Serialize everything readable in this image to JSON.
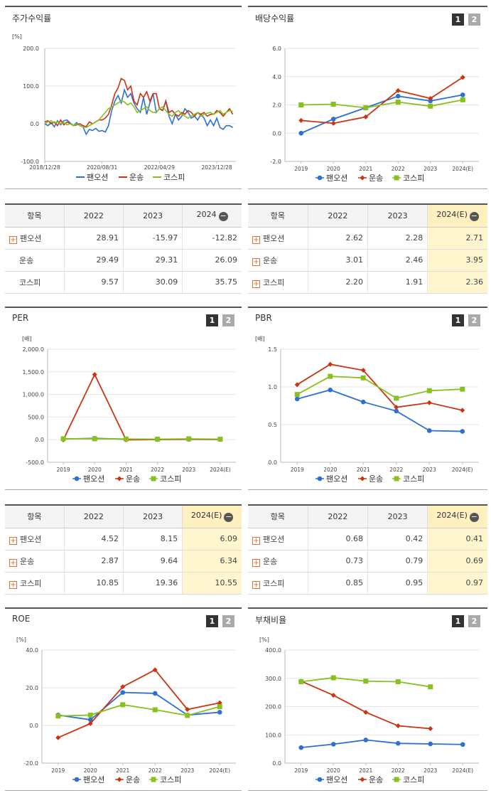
{
  "colors": {
    "pan": "#2e6fd6",
    "trans": "#cc3311",
    "kospi": "#88c020"
  },
  "legend": {
    "pan": "팬오션",
    "trans": "운송",
    "kospi": "코스피"
  },
  "pager": {
    "one": "1",
    "two": "2"
  },
  "charts": {
    "ret": {
      "title": "주가수익률",
      "unit": "[%]",
      "chart_data": {
        "type": "line",
        "ylim": [
          -100,
          200
        ],
        "yticks": [
          "200.0",
          "100.0",
          "0.0",
          "-100.0"
        ],
        "xticks": [
          "2018/12/28",
          "2020/08/31",
          "2022/04/29",
          "2023/12/28"
        ],
        "x_range": [
          0,
          60
        ],
        "x_tick_pos": [
          0,
          18,
          36,
          54
        ],
        "series": [
          {
            "name": "팬오션",
            "key": "pan",
            "values": [
              0,
              -5,
              3,
              -8,
              8,
              -3,
              8,
              10,
              2,
              -5,
              3,
              -5,
              -8,
              -28,
              -15,
              -18,
              -12,
              -20,
              -18,
              -22,
              -5,
              35,
              60,
              75,
              55,
              90,
              70,
              80,
              55,
              40,
              30,
              70,
              25,
              55,
              80,
              30,
              40,
              35,
              60,
              20,
              0,
              25,
              10,
              20,
              40,
              30,
              15,
              20,
              10,
              25,
              15,
              -5,
              10,
              -5,
              15,
              -10,
              -15,
              -5,
              -5,
              -10
            ]
          },
          {
            "name": "운송",
            "key": "trans",
            "values": [
              5,
              8,
              0,
              5,
              -5,
              10,
              -3,
              5,
              0,
              -5,
              -3,
              0,
              -5,
              -8,
              5,
              0,
              5,
              10,
              10,
              15,
              25,
              50,
              80,
              95,
              120,
              115,
              90,
              100,
              60,
              50,
              80,
              70,
              85,
              60,
              80,
              80,
              40,
              35,
              60,
              30,
              35,
              25,
              20,
              30,
              25,
              35,
              30,
              20,
              30,
              25,
              30,
              20,
              25,
              25,
              35,
              30,
              20,
              30,
              40,
              25
            ]
          },
          {
            "name": "코스피",
            "key": "kospi",
            "values": [
              0,
              5,
              8,
              2,
              5,
              0,
              3,
              -3,
              0,
              -5,
              0,
              -5,
              -8,
              -10,
              -5,
              0,
              5,
              10,
              20,
              30,
              40,
              45,
              50,
              55,
              60,
              58,
              50,
              55,
              45,
              30,
              35,
              40,
              45,
              35,
              30,
              30,
              40,
              45,
              35,
              25,
              20,
              30,
              35,
              25,
              20,
              15,
              20,
              25,
              30,
              20,
              25,
              28,
              30,
              25,
              30,
              35,
              25,
              30,
              35,
              33
            ]
          }
        ]
      }
    },
    "div": {
      "title": "배당수익률",
      "chart_data": {
        "type": "line",
        "ylim": [
          -2,
          6
        ],
        "yticks": [
          "6.0",
          "4.0",
          "2.0",
          "0.0",
          "-2.0"
        ],
        "categories": [
          "2019",
          "2020",
          "2021",
          "2022",
          "2023",
          "2024(E)"
        ],
        "series": [
          {
            "name": "팬오션",
            "key": "pan",
            "values": [
              0.0,
              1.0,
              1.8,
              2.62,
              2.28,
              2.71
            ]
          },
          {
            "name": "운송",
            "key": "trans",
            "values": [
              0.9,
              0.7,
              1.15,
              3.01,
              2.46,
              3.95
            ]
          },
          {
            "name": "코스피",
            "key": "kospi",
            "values": [
              2.0,
              2.05,
              1.8,
              2.2,
              1.91,
              2.36
            ]
          }
        ]
      }
    },
    "per": {
      "title": "PER",
      "unit": "[배]",
      "chart_data": {
        "type": "line",
        "ylim": [
          -500,
          2000
        ],
        "yticks": [
          "2,000.0",
          "1,500.0",
          "1,000.0",
          "500.0",
          "0.0",
          "-500.0"
        ],
        "categories": [
          "2019",
          "2020",
          "2021",
          "2022",
          "2023",
          "2024(E)"
        ],
        "series": [
          {
            "name": "팬오션",
            "key": "pan",
            "values": [
              15,
              30,
              10,
              4.52,
              8.15,
              6.09
            ]
          },
          {
            "name": "운송",
            "key": "trans",
            "values": [
              -5,
              1440,
              -5,
              2.87,
              9.64,
              6.34
            ]
          },
          {
            "name": "코스피",
            "key": "kospi",
            "values": [
              20,
              20,
              15,
              10.85,
              19.36,
              10.55
            ]
          }
        ]
      }
    },
    "pbr": {
      "title": "PBR",
      "unit": "[배]",
      "chart_data": {
        "type": "line",
        "ylim": [
          0,
          1.5
        ],
        "yticks": [
          "1.5",
          "1.0",
          "0.5",
          "0.0"
        ],
        "categories": [
          "2019",
          "2020",
          "2021",
          "2022",
          "2023",
          "2024(E)"
        ],
        "series": [
          {
            "name": "팬오션",
            "key": "pan",
            "values": [
              0.84,
              0.96,
              0.8,
              0.68,
              0.42,
              0.41
            ]
          },
          {
            "name": "운송",
            "key": "trans",
            "values": [
              1.03,
              1.3,
              1.22,
              0.73,
              0.79,
              0.69
            ]
          },
          {
            "name": "코스피",
            "key": "kospi",
            "values": [
              0.9,
              1.14,
              1.12,
              0.85,
              0.95,
              0.97
            ]
          }
        ]
      }
    },
    "roe": {
      "title": "ROE",
      "unit": "[%]",
      "chart_data": {
        "type": "line",
        "ylim": [
          -20,
          40
        ],
        "yticks": [
          "40.0",
          "20.0",
          "0.0",
          "-20.0"
        ],
        "categories": [
          "2019",
          "2020",
          "2021",
          "2022",
          "2023",
          "2024(E)"
        ],
        "series": [
          {
            "name": "팬오션",
            "key": "pan",
            "values": [
              5.5,
              3.0,
              17.5,
              17.0,
              5.5,
              7.0
            ]
          },
          {
            "name": "운송",
            "key": "trans",
            "values": [
              -6.5,
              1.0,
              20.5,
              29.5,
              8.5,
              12.0
            ]
          },
          {
            "name": "코스피",
            "key": "kospi",
            "values": [
              5.0,
              5.5,
              11.0,
              8.3,
              5.3,
              10.0
            ]
          }
        ]
      }
    },
    "debt": {
      "title": "부채비율",
      "unit": "[%]",
      "chart_data": {
        "type": "line",
        "ylim": [
          0,
          400
        ],
        "yticks": [
          "400.0",
          "300.0",
          "200.0",
          "100.0",
          "0.0"
        ],
        "categories": [
          "2019",
          "2020",
          "2021",
          "2022",
          "2023",
          "2024(E)"
        ],
        "series": [
          {
            "name": "팬오션",
            "key": "pan",
            "values": [
              55,
              67,
              82,
              70,
              68,
              66
            ]
          },
          {
            "name": "운송",
            "key": "trans",
            "values": [
              290,
              240,
              180,
              132,
              122,
              null
            ]
          },
          {
            "name": "코스피",
            "key": "kospi",
            "values": [
              288,
              302,
              290,
              288,
              270,
              null
            ]
          }
        ]
      }
    }
  },
  "tables": {
    "ret": {
      "headers": {
        "item": "항목",
        "c1": "2022",
        "c2": "2023",
        "c3": "2024"
      },
      "rows": [
        {
          "name": "팬오션",
          "v1": "28.91",
          "v2": "-15.97",
          "v3": "-12.82"
        },
        {
          "name": "운송",
          "v1": "29.49",
          "v2": "29.31",
          "v3": "26.09"
        },
        {
          "name": "코스피",
          "v1": "9.57",
          "v2": "30.09",
          "v3": "35.75"
        }
      ]
    },
    "div": {
      "headers": {
        "item": "항목",
        "c1": "2022",
        "c2": "2023",
        "c3": "2024(E)"
      },
      "rows": [
        {
          "name": "팬오션",
          "v1": "2.62",
          "v2": "2.28",
          "v3": "2.71"
        },
        {
          "name": "운송",
          "v1": "3.01",
          "v2": "2.46",
          "v3": "3.95"
        },
        {
          "name": "코스피",
          "v1": "2.20",
          "v2": "1.91",
          "v3": "2.36"
        }
      ]
    },
    "per": {
      "headers": {
        "item": "항목",
        "c1": "2022",
        "c2": "2023",
        "c3": "2024(E)"
      },
      "rows": [
        {
          "name": "팬오션",
          "v1": "4.52",
          "v2": "8.15",
          "v3": "6.09"
        },
        {
          "name": "운송",
          "v1": "2.87",
          "v2": "9.64",
          "v3": "6.34"
        },
        {
          "name": "코스피",
          "v1": "10.85",
          "v2": "19.36",
          "v3": "10.55"
        }
      ]
    },
    "pbr": {
      "headers": {
        "item": "항목",
        "c1": "2022",
        "c2": "2023",
        "c3": "2024(E)"
      },
      "rows": [
        {
          "name": "팬오션",
          "v1": "0.68",
          "v2": "0.42",
          "v3": "0.41"
        },
        {
          "name": "운송",
          "v1": "0.73",
          "v2": "0.79",
          "v3": "0.69"
        },
        {
          "name": "코스피",
          "v1": "0.85",
          "v2": "0.95",
          "v3": "0.97"
        }
      ]
    }
  }
}
